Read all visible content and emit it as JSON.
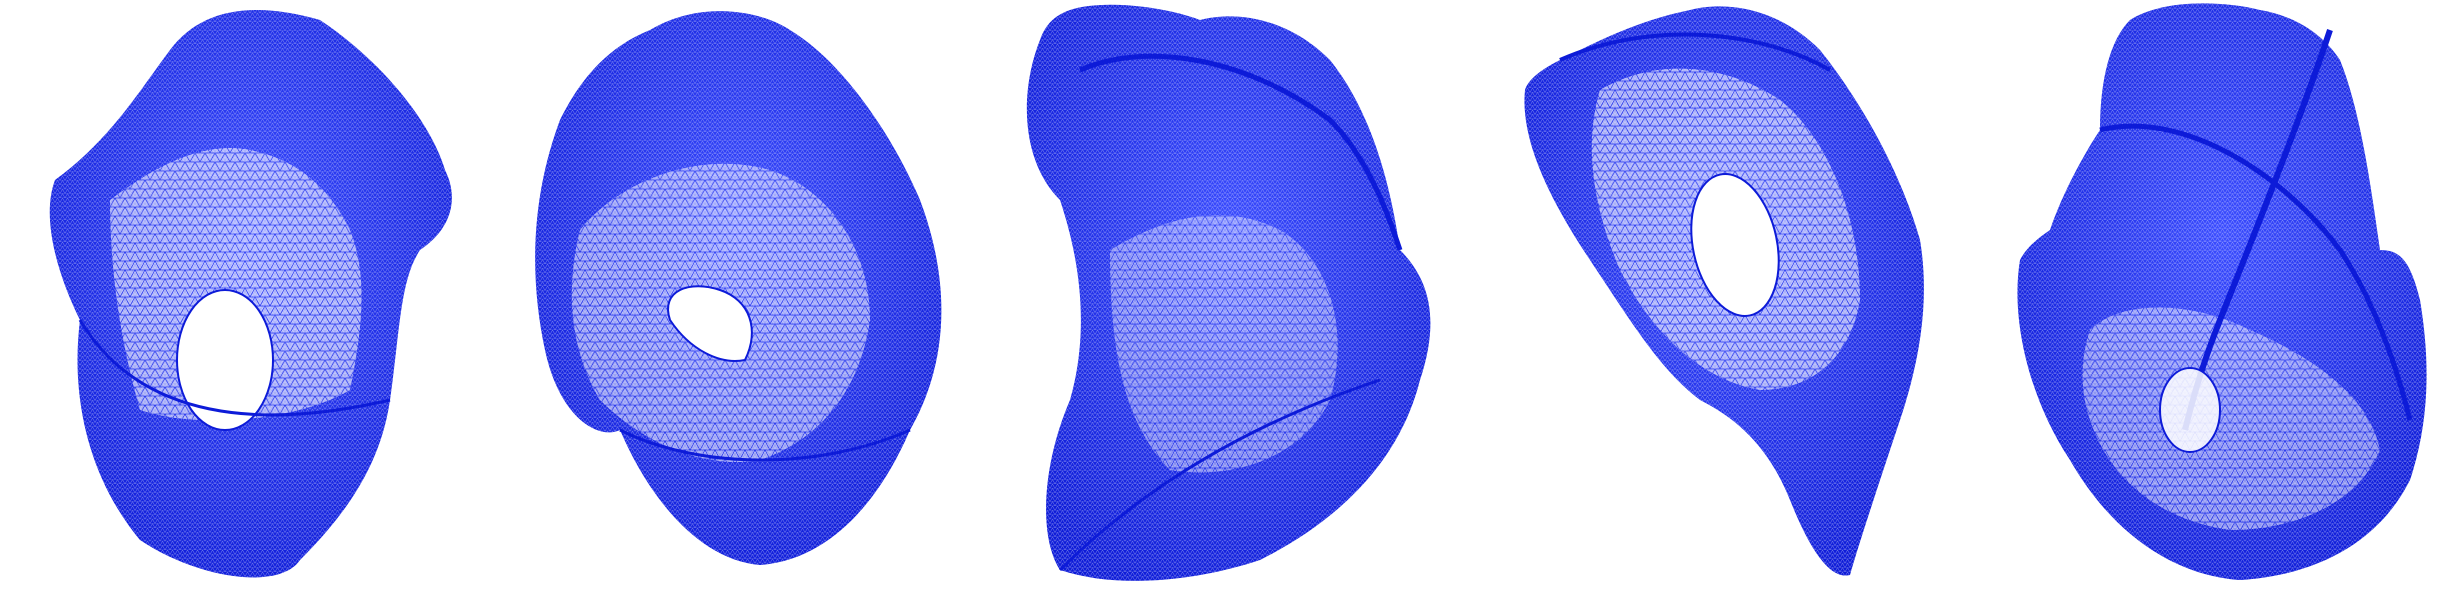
{
  "figure": {
    "background_color": "#ffffff",
    "mesh_color": "#1a2cf0",
    "mesh_dark_color": "#0d1bd8",
    "panel_count": 5,
    "panels": [
      {
        "id": "mesh-1",
        "description_tag": "surface-with-hole"
      },
      {
        "id": "mesh-2",
        "description_tag": "surface-with-small-hole"
      },
      {
        "id": "mesh-3",
        "description_tag": "twisted-surface"
      },
      {
        "id": "mesh-4",
        "description_tag": "surface-with-hole-pointed"
      },
      {
        "id": "mesh-5",
        "description_tag": "self-intersecting-surface"
      }
    ]
  }
}
